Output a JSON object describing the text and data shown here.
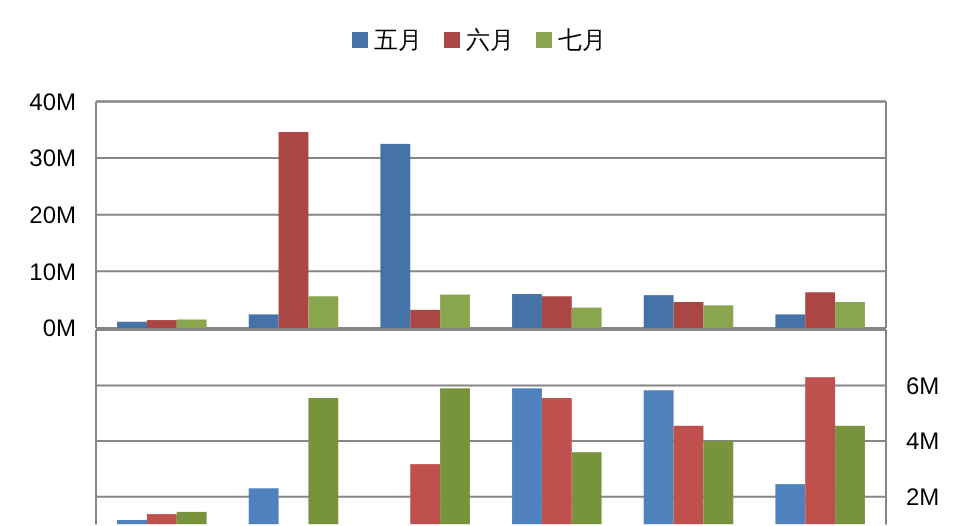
{
  "chart_data": [
    {
      "type": "bar",
      "categories": [
        null,
        null,
        null,
        null,
        null,
        null
      ],
      "series": [
        {
          "name": "五月",
          "color": "#4572a7",
          "values": [
            1.1,
            2.4,
            32.5,
            6.0,
            5.8,
            2.4
          ]
        },
        {
          "name": "六月",
          "color": "#aa4643",
          "values": [
            1.4,
            34.6,
            3.2,
            5.6,
            4.6,
            6.3
          ]
        },
        {
          "name": "七月",
          "color": "#89a54e",
          "values": [
            1.5,
            5.6,
            5.9,
            3.6,
            4.0,
            4.6
          ]
        }
      ],
      "ylim": [
        0,
        40
      ],
      "yticks": [
        {
          "value": 0,
          "label": "0M"
        },
        {
          "value": 10,
          "label": "10M"
        },
        {
          "value": 20,
          "label": "20M"
        },
        {
          "value": 30,
          "label": "30M"
        },
        {
          "value": 40,
          "label": "40M"
        }
      ],
      "grid": "y",
      "legend": "top",
      "tick_labels": "y"
    },
    {
      "type": "bar",
      "categories": [
        null,
        null,
        null,
        null,
        null,
        null
      ],
      "series": [
        {
          "color": "#4f81bd",
          "values": [
            1.16,
            2.3,
            null,
            5.9,
            5.83,
            2.45
          ]
        },
        {
          "color": "#c0504d",
          "values": [
            1.37,
            null,
            3.17,
            5.55,
            4.55,
            6.3
          ]
        },
        {
          "color": "#77933c",
          "values": [
            1.45,
            5.55,
            5.9,
            3.6,
            4.0,
            4.55
          ]
        }
      ],
      "ylim": [
        1,
        8
      ],
      "yticks": [
        {
          "value": 2,
          "label": "2M"
        },
        {
          "value": 4,
          "label": "4M"
        },
        {
          "value": 6,
          "label": "6M"
        }
      ],
      "grid": "y",
      "legend": false,
      "tick_labels": "y"
    }
  ]
}
